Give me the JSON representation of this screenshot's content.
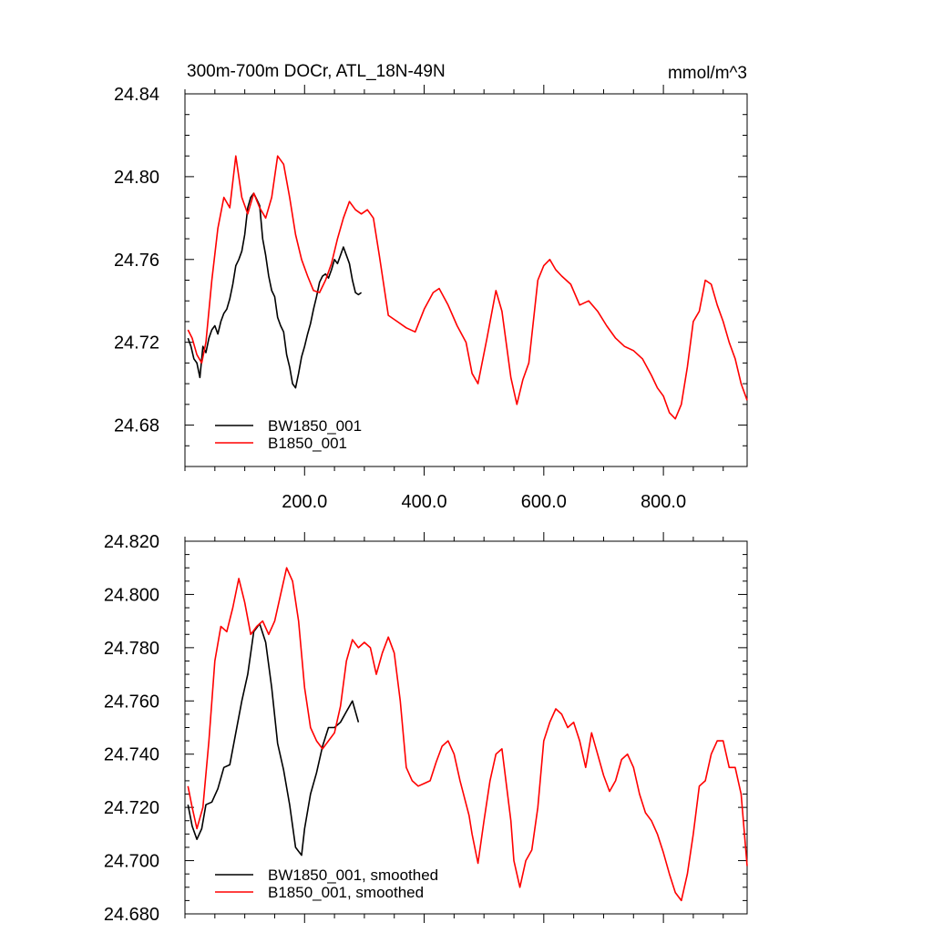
{
  "header": {
    "title": "300m-700m DOCr, ATL_18N-49N",
    "units": "mmol/m^3"
  },
  "colors": {
    "BW1850_001": "#000000",
    "B1850_001": "#ff0000"
  },
  "chart_data": [
    {
      "type": "line",
      "title": "300m-700m DOCr, ATL_18N-49N",
      "units": "mmol/m^3",
      "xlim": [
        0,
        940
      ],
      "ylim": [
        24.66,
        24.84
      ],
      "xticks": [
        200,
        400,
        600,
        800
      ],
      "xtick_labels": [
        "200.0",
        "400.0",
        "600.0",
        "800.0"
      ],
      "yticks": [
        24.68,
        24.72,
        24.76,
        24.8,
        24.84
      ],
      "ytick_labels": [
        "24.68",
        "24.72",
        "24.76",
        "24.80",
        "24.84"
      ],
      "legend_position": "bottom-left",
      "grid": false,
      "series": [
        {
          "name": "BW1850_001",
          "color": "#000000",
          "x": [
            5,
            10,
            15,
            20,
            25,
            30,
            35,
            40,
            45,
            50,
            55,
            60,
            65,
            70,
            75,
            80,
            85,
            90,
            95,
            100,
            105,
            110,
            115,
            120,
            125,
            130,
            135,
            140,
            145,
            150,
            155,
            160,
            165,
            170,
            175,
            180,
            185,
            190,
            195,
            200,
            205,
            210,
            215,
            220,
            225,
            230,
            235,
            240,
            245,
            250,
            255,
            260,
            265,
            270,
            275,
            280,
            285,
            290,
            295
          ],
          "y": [
            24.722,
            24.718,
            24.712,
            24.71,
            24.703,
            24.718,
            24.715,
            24.722,
            24.726,
            24.728,
            24.724,
            24.73,
            24.734,
            24.736,
            24.741,
            24.748,
            24.757,
            24.76,
            24.764,
            24.772,
            24.785,
            24.79,
            24.792,
            24.789,
            24.786,
            24.77,
            24.762,
            24.752,
            24.745,
            24.742,
            24.732,
            24.728,
            24.725,
            24.714,
            24.708,
            24.7,
            24.698,
            24.705,
            24.713,
            24.718,
            24.724,
            24.729,
            24.736,
            24.742,
            24.749,
            24.752,
            24.753,
            24.751,
            24.755,
            24.76,
            24.758,
            24.762,
            24.766,
            24.762,
            24.758,
            24.75,
            24.744,
            24.743,
            24.744
          ]
        },
        {
          "name": "B1850_001",
          "color": "#ff0000",
          "x": [
            5,
            12,
            20,
            28,
            35,
            45,
            55,
            65,
            75,
            85,
            95,
            105,
            115,
            125,
            135,
            145,
            155,
            165,
            175,
            185,
            195,
            205,
            215,
            225,
            235,
            245,
            255,
            265,
            275,
            285,
            295,
            305,
            315,
            325,
            340,
            355,
            370,
            385,
            400,
            415,
            425,
            440,
            455,
            470,
            480,
            490,
            505,
            520,
            530,
            545,
            555,
            565,
            575,
            590,
            600,
            610,
            620,
            630,
            645,
            660,
            675,
            690,
            705,
            720,
            735,
            750,
            765,
            780,
            790,
            800,
            810,
            820,
            830,
            840,
            850,
            860,
            870,
            880,
            890,
            900,
            910,
            920,
            930,
            940
          ],
          "y": [
            24.726,
            24.722,
            24.714,
            24.71,
            24.72,
            24.75,
            24.775,
            24.79,
            24.785,
            24.81,
            24.79,
            24.782,
            24.792,
            24.785,
            24.78,
            24.79,
            24.81,
            24.806,
            24.79,
            24.772,
            24.76,
            24.752,
            24.745,
            24.744,
            24.75,
            24.758,
            24.77,
            24.78,
            24.788,
            24.784,
            24.782,
            24.784,
            24.78,
            24.762,
            24.733,
            24.73,
            24.727,
            24.725,
            24.736,
            24.744,
            24.746,
            24.738,
            24.728,
            24.72,
            24.705,
            24.7,
            24.722,
            24.745,
            24.735,
            24.703,
            24.69,
            24.702,
            24.71,
            24.75,
            24.757,
            24.76,
            24.755,
            24.752,
            24.748,
            24.738,
            24.74,
            24.735,
            24.728,
            24.722,
            24.718,
            24.716,
            24.712,
            24.704,
            24.698,
            24.694,
            24.686,
            24.683,
            24.69,
            24.708,
            24.73,
            24.735,
            24.75,
            24.748,
            24.738,
            24.73,
            24.72,
            24.712,
            24.7,
            24.692
          ]
        }
      ]
    },
    {
      "type": "line",
      "title": "",
      "xlim": [
        0,
        940
      ],
      "ylim": [
        24.68,
        24.82
      ],
      "xticks": [
        200,
        400,
        600,
        800
      ],
      "yticks": [
        24.68,
        24.7,
        24.72,
        24.74,
        24.76,
        24.78,
        24.8,
        24.82
      ],
      "ytick_labels": [
        "24.680",
        "24.700",
        "24.720",
        "24.740",
        "24.760",
        "24.780",
        "24.800",
        "24.820"
      ],
      "legend_position": "bottom-left",
      "grid": false,
      "series": [
        {
          "name": "BW1850_001, smoothed",
          "color": "#000000",
          "x": [
            5,
            12,
            20,
            28,
            35,
            45,
            55,
            65,
            75,
            85,
            95,
            105,
            115,
            125,
            135,
            145,
            155,
            165,
            175,
            185,
            195,
            200,
            210,
            220,
            230,
            240,
            250,
            260,
            270,
            280,
            290
          ],
          "y": [
            24.721,
            24.713,
            24.708,
            24.712,
            24.721,
            24.722,
            24.727,
            24.735,
            24.736,
            24.748,
            24.76,
            24.77,
            24.786,
            24.789,
            24.782,
            24.765,
            24.744,
            24.734,
            24.721,
            24.705,
            24.702,
            24.712,
            24.725,
            24.733,
            24.743,
            24.75,
            24.75,
            24.752,
            24.756,
            24.76,
            24.752
          ]
        },
        {
          "name": "B1850_001, smoothed",
          "color": "#ff0000",
          "x": [
            5,
            12,
            20,
            30,
            40,
            50,
            60,
            70,
            80,
            90,
            100,
            110,
            120,
            130,
            140,
            150,
            160,
            170,
            180,
            190,
            200,
            210,
            220,
            230,
            240,
            250,
            260,
            270,
            280,
            290,
            300,
            310,
            320,
            330,
            340,
            350,
            360,
            370,
            380,
            390,
            400,
            410,
            420,
            430,
            440,
            450,
            460,
            475,
            480,
            490,
            500,
            510,
            520,
            530,
            545,
            550,
            560,
            570,
            580,
            590,
            600,
            610,
            620,
            630,
            640,
            650,
            660,
            670,
            680,
            690,
            700,
            710,
            720,
            730,
            740,
            750,
            760,
            770,
            780,
            790,
            800,
            810,
            820,
            830,
            840,
            850,
            860,
            870,
            880,
            890,
            900,
            910,
            920,
            930,
            940
          ],
          "y": [
            24.728,
            24.72,
            24.712,
            24.72,
            24.745,
            24.775,
            24.788,
            24.786,
            24.795,
            24.806,
            24.797,
            24.785,
            24.788,
            24.79,
            24.785,
            24.79,
            24.8,
            24.81,
            24.805,
            24.79,
            24.765,
            24.75,
            24.745,
            24.742,
            24.745,
            24.748,
            24.758,
            24.775,
            24.783,
            24.78,
            24.782,
            24.78,
            24.77,
            24.778,
            24.784,
            24.778,
            24.76,
            24.735,
            24.73,
            24.728,
            24.729,
            24.73,
            24.737,
            24.743,
            24.745,
            24.74,
            24.73,
            24.717,
            24.71,
            24.699,
            24.715,
            24.73,
            24.74,
            24.742,
            24.715,
            24.7,
            24.69,
            24.7,
            24.704,
            24.72,
            24.745,
            24.752,
            24.757,
            24.755,
            24.75,
            24.752,
            24.745,
            24.735,
            24.748,
            24.74,
            24.732,
            24.726,
            24.73,
            24.738,
            24.74,
            24.735,
            24.725,
            24.718,
            24.715,
            24.71,
            24.703,
            24.695,
            24.688,
            24.685,
            24.695,
            24.71,
            24.728,
            24.73,
            24.74,
            24.745,
            24.745,
            24.735,
            24.735,
            24.725,
            24.698
          ]
        }
      ]
    }
  ]
}
